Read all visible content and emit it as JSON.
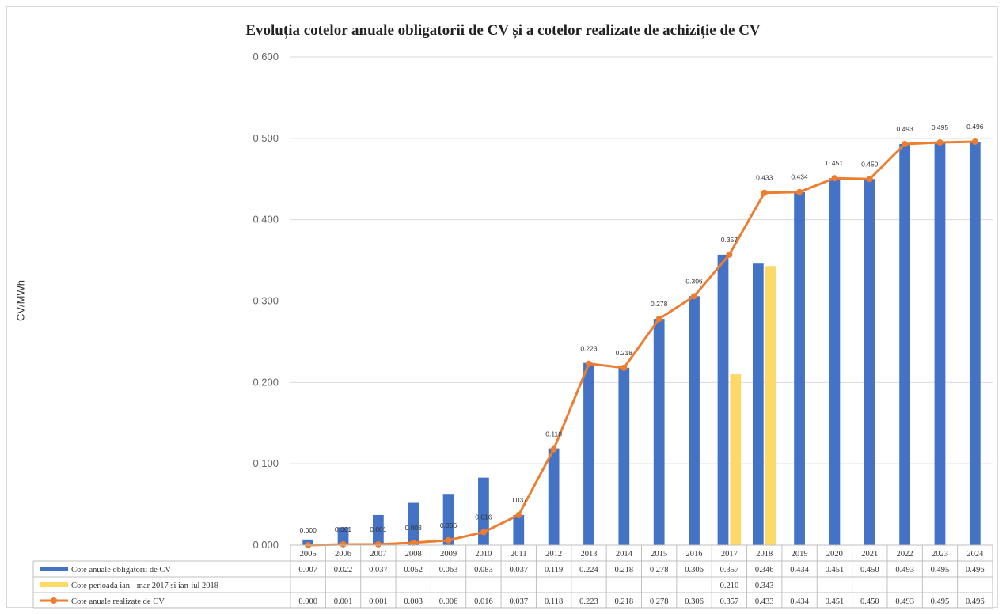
{
  "chart_data": {
    "type": "bar",
    "title": "Evoluția cotelor anuale obligatorii de CV și a cotelor realizate de achiziție de CV",
    "ylabel": "CV/MWh",
    "ylim": [
      0,
      0.6
    ],
    "yticks": [
      "0.000",
      "0.100",
      "0.200",
      "0.300",
      "0.400",
      "0.500",
      "0.600"
    ],
    "grid": true,
    "legend": "data-table",
    "categories": [
      "2005",
      "2006",
      "2007",
      "2008",
      "2009",
      "2010",
      "2011",
      "2012",
      "2013",
      "2014",
      "2015",
      "2016",
      "2017",
      "2018",
      "2019",
      "2020",
      "2021",
      "2022",
      "2023",
      "2024"
    ],
    "series": [
      {
        "name": "Cote anuale obligatorii de CV",
        "type": "bar",
        "color": "#4472c4",
        "values": [
          0.007,
          0.022,
          0.037,
          0.052,
          0.063,
          0.083,
          0.037,
          0.119,
          0.224,
          0.218,
          0.278,
          0.306,
          0.357,
          0.346,
          0.434,
          0.451,
          0.45,
          0.493,
          0.495,
          0.496
        ],
        "labels": [
          "0.007",
          "0.022",
          "0.037",
          "0.052",
          "0.063",
          "0.083",
          "0.037",
          "0.119",
          "0.224",
          "0.218",
          "0.278",
          "0.306",
          "0.357",
          "0.346",
          "0.434",
          "0.451",
          "0.450",
          "0.493",
          "0.495",
          "0.496"
        ]
      },
      {
        "name": "Cote perioada ian - mar 2017 si ian-iul 2018",
        "type": "bar",
        "color": "#ffd966",
        "values": [
          null,
          null,
          null,
          null,
          null,
          null,
          null,
          null,
          null,
          null,
          null,
          null,
          0.21,
          0.343,
          null,
          null,
          null,
          null,
          null,
          null
        ],
        "labels": [
          "",
          "",
          "",
          "",
          "",
          "",
          "",
          "",
          "",
          "",
          "",
          "",
          "0.210",
          "0.343",
          "",
          "",
          "",
          "",
          "",
          ""
        ]
      },
      {
        "name": "Cote anuale realizate de CV",
        "type": "line",
        "color": "#ed7d31",
        "values": [
          0.0,
          0.001,
          0.001,
          0.003,
          0.006,
          0.016,
          0.037,
          0.118,
          0.223,
          0.218,
          0.278,
          0.306,
          0.357,
          0.433,
          0.434,
          0.451,
          0.45,
          0.493,
          0.495,
          0.496
        ],
        "labels": [
          "0.000",
          "0.001",
          "0.001",
          "0.003",
          "0.006",
          "0.016",
          "0.037",
          "0.118",
          "0.223",
          "0.218",
          "0.278",
          "0.306",
          "0.357",
          "0.433",
          "0.434",
          "0.451",
          "0.450",
          "0.493",
          "0.495",
          "0.496"
        ]
      }
    ]
  }
}
